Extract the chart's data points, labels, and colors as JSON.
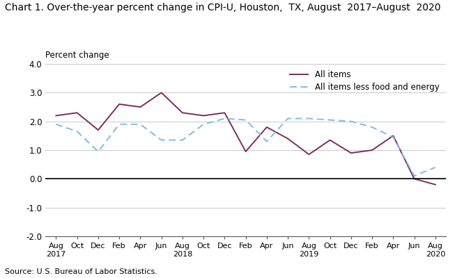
{
  "title": "Chart 1. Over-the-year percent change in CPI-U, Houston,  TX, August  2017–August  2020",
  "ylabel": "Percent change",
  "source": "Source: U.S. Bureau of Labor Statistics.",
  "x_labels": [
    "Aug\n2017",
    "Oct",
    "Dec",
    "Feb",
    "Apr",
    "Jun",
    "Aug\n2018",
    "Oct",
    "Dec",
    "Feb",
    "Apr",
    "Jun",
    "Aug\n2019",
    "Oct",
    "Dec",
    "Feb",
    "Apr",
    "Jun",
    "Aug\n2020"
  ],
  "all_items": [
    2.2,
    2.3,
    1.7,
    2.6,
    2.5,
    3.0,
    2.3,
    2.2,
    2.3,
    0.95,
    1.8,
    1.4,
    0.85,
    1.35,
    0.9,
    1.0,
    1.5,
    0.0,
    -0.2
  ],
  "all_items_less": [
    1.9,
    1.65,
    0.95,
    1.9,
    1.9,
    1.35,
    1.35,
    1.9,
    2.1,
    2.05,
    1.3,
    2.1,
    2.1,
    2.05,
    2.0,
    1.8,
    1.45,
    0.1,
    0.4
  ],
  "all_items_color": "#7B2D5E",
  "all_items_less_color": "#7FBBE8",
  "ylim": [
    -2.0,
    4.0
  ],
  "yticks": [
    -2.0,
    -1.0,
    0.0,
    1.0,
    2.0,
    3.0,
    4.0
  ],
  "ytick_labels": [
    "-2.0",
    "-1.0",
    "0.0",
    "1.0",
    "2.0",
    "3.0",
    "4.0"
  ],
  "legend_all_items": "All items",
  "legend_all_items_less": "All items less food and energy"
}
